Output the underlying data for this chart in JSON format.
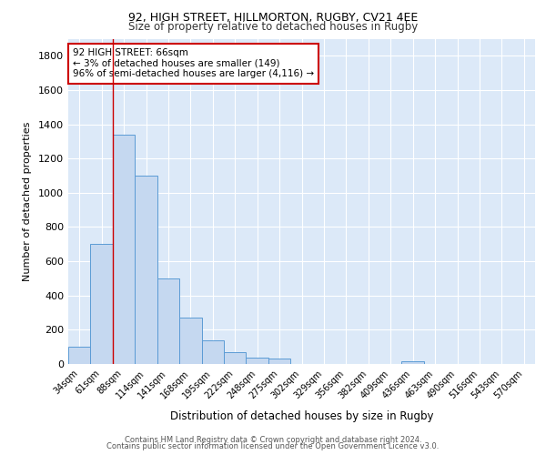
{
  "title_line1": "92, HIGH STREET, HILLMORTON, RUGBY, CV21 4EE",
  "title_line2": "Size of property relative to detached houses in Rugby",
  "xlabel": "Distribution of detached houses by size in Rugby",
  "ylabel": "Number of detached properties",
  "bar_labels": [
    "34sqm",
    "61sqm",
    "88sqm",
    "114sqm",
    "141sqm",
    "168sqm",
    "195sqm",
    "222sqm",
    "248sqm",
    "275sqm",
    "302sqm",
    "329sqm",
    "356sqm",
    "382sqm",
    "409sqm",
    "436sqm",
    "463sqm",
    "490sqm",
    "516sqm",
    "543sqm",
    "570sqm"
  ],
  "bar_values": [
    100,
    700,
    1340,
    1100,
    500,
    270,
    140,
    70,
    35,
    30,
    0,
    0,
    0,
    0,
    0,
    15,
    0,
    0,
    0,
    0,
    0
  ],
  "bar_color": "#c5d8f0",
  "bar_edge_color": "#5b9bd5",
  "background_color": "#dce9f8",
  "grid_color": "#ffffff",
  "red_line_x": 1.5,
  "red_line_color": "#cc0000",
  "annotation_box_text": "92 HIGH STREET: 66sqm\n← 3% of detached houses are smaller (149)\n96% of semi-detached houses are larger (4,116) →",
  "annotation_box_color": "#cc0000",
  "footer_line1": "Contains HM Land Registry data © Crown copyright and database right 2024.",
  "footer_line2": "Contains public sector information licensed under the Open Government Licence v3.0.",
  "ylim": [
    0,
    1900
  ],
  "yticks": [
    0,
    200,
    400,
    600,
    800,
    1000,
    1200,
    1400,
    1600,
    1800
  ]
}
